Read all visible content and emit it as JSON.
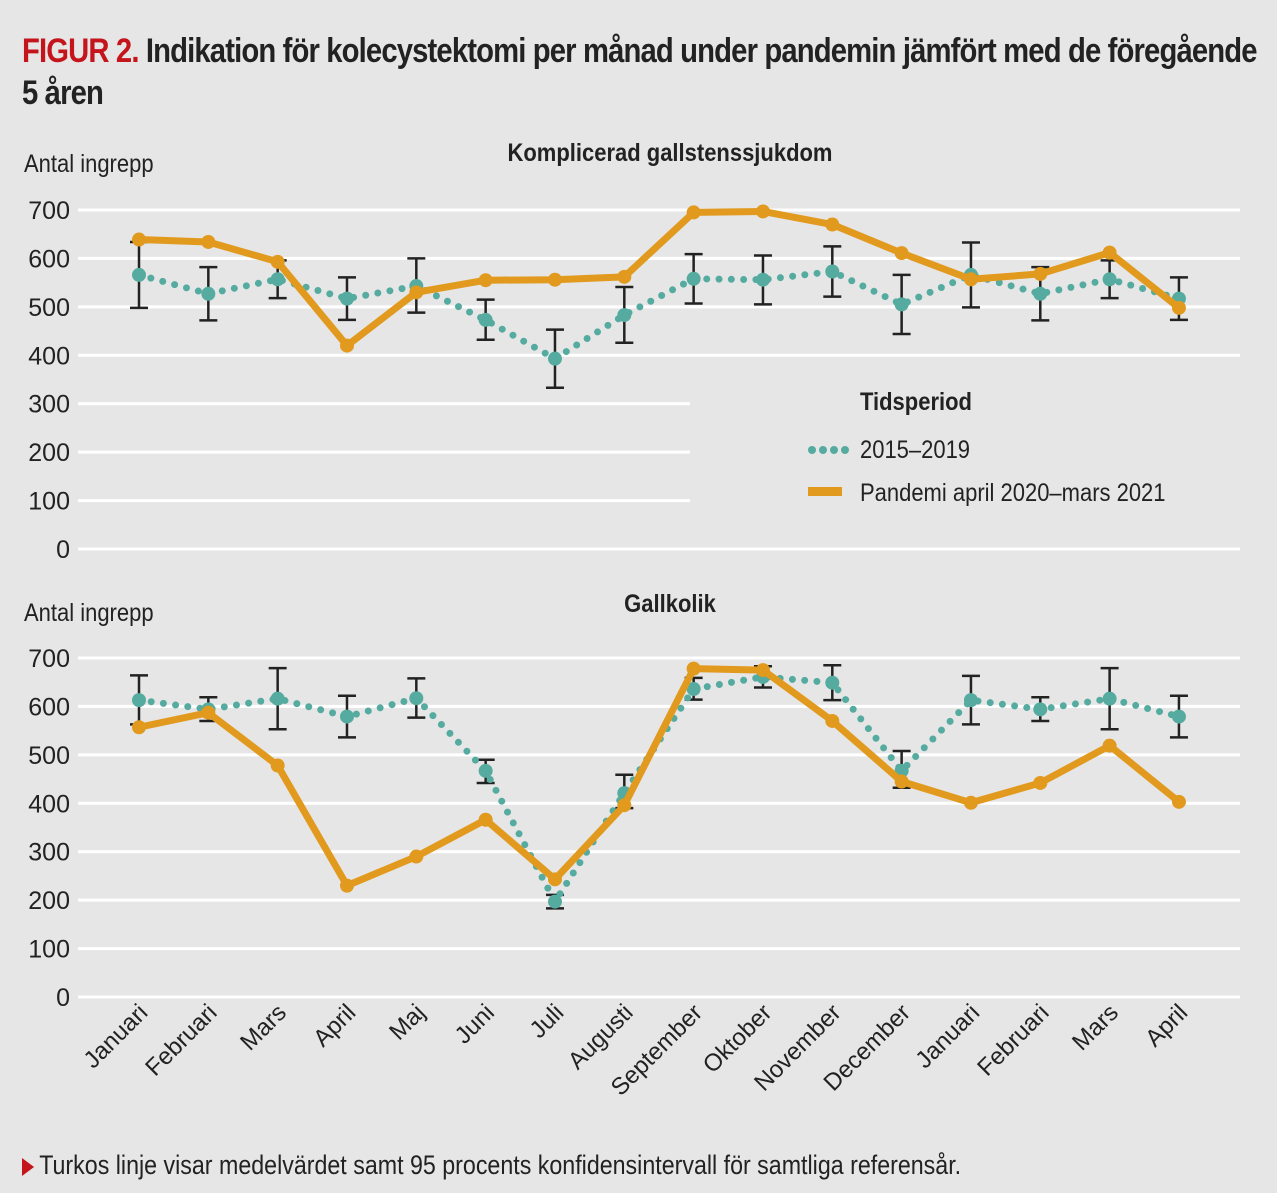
{
  "header": {
    "figure_label": "FIGUR 2.",
    "title": "Indikation för kolecystektomi per månad under pandemin jämfört med de föregående 5 åren"
  },
  "footnote": "Turkos linje visar medelvärdet samt 95 procents konfidensintervall för samtliga referensår.",
  "colors": {
    "reference": "#55ab9f",
    "pandemic": "#e19a1e",
    "accent": "#c4151c",
    "errorbar": "#222222",
    "grid": "#ffffff",
    "background": "#e6e6e6"
  },
  "chart_data": [
    {
      "type": "line",
      "title": "Komplicerad gallstenssjukdom",
      "ylabel": "Antal ingrepp",
      "xlabel": "",
      "ylim": [
        0,
        700
      ],
      "yticks": [
        0,
        100,
        200,
        300,
        400,
        500,
        600,
        700
      ],
      "grid": true,
      "categories": [
        "Januari",
        "Februari",
        "Mars",
        "April",
        "Maj",
        "Juni",
        "Juli",
        "Augusti",
        "September",
        "Oktober",
        "November",
        "December",
        "Januari",
        "Februari",
        "Mars",
        "April"
      ],
      "legend": {
        "title": "Tidsperiod",
        "position": "center-right",
        "entries": [
          "2015–2019",
          "Pandemi april 2020–mars 2021"
        ]
      },
      "series": [
        {
          "name": "2015–2019",
          "style": "dotted",
          "values": [
            566,
            527,
            557,
            517,
            543,
            473,
            393,
            483,
            558,
            556,
            573,
            505,
            566,
            527,
            557,
            517
          ],
          "ci_low": [
            498,
            472,
            518,
            473,
            488,
            432,
            333,
            426,
            507,
            505,
            521,
            444,
            499,
            472,
            518,
            473
          ],
          "ci_high": [
            634,
            582,
            596,
            561,
            600,
            515,
            453,
            541,
            609,
            606,
            625,
            566,
            633,
            582,
            596,
            561
          ]
        },
        {
          "name": "Pandemi april 2020–mars 2021",
          "style": "solid",
          "values": [
            639,
            634,
            593,
            420,
            530,
            555,
            556,
            562,
            695,
            697,
            670,
            611,
            557,
            568,
            612,
            498
          ]
        }
      ]
    },
    {
      "type": "line",
      "title": "Gallkolik",
      "ylabel": "Antal ingrepp",
      "xlabel": "",
      "ylim": [
        0,
        700
      ],
      "yticks": [
        0,
        100,
        200,
        300,
        400,
        500,
        600,
        700
      ],
      "grid": true,
      "categories": [
        "Januari",
        "Februari",
        "Mars",
        "April",
        "Maj",
        "Juni",
        "Juli",
        "Augusti",
        "September",
        "Oktober",
        "November",
        "December",
        "Januari",
        "Februari",
        "Mars",
        "April"
      ],
      "series": [
        {
          "name": "2015–2019",
          "style": "dotted",
          "values": [
            613,
            594,
            616,
            579,
            617,
            467,
            197,
            421,
            636,
            661,
            649,
            467,
            613,
            594,
            616,
            579
          ],
          "ci_low": [
            563,
            570,
            553,
            536,
            577,
            442,
            183,
            390,
            614,
            639,
            613,
            432,
            563,
            570,
            553,
            536
          ],
          "ci_high": [
            664,
            619,
            679,
            622,
            658,
            490,
            211,
            459,
            659,
            683,
            685,
            508,
            663,
            619,
            679,
            622
          ]
        },
        {
          "name": "Pandemi april 2020–mars 2021",
          "style": "solid",
          "values": [
            557,
            587,
            478,
            230,
            290,
            366,
            243,
            396,
            678,
            675,
            570,
            445,
            401,
            442,
            519,
            403
          ]
        }
      ]
    }
  ]
}
